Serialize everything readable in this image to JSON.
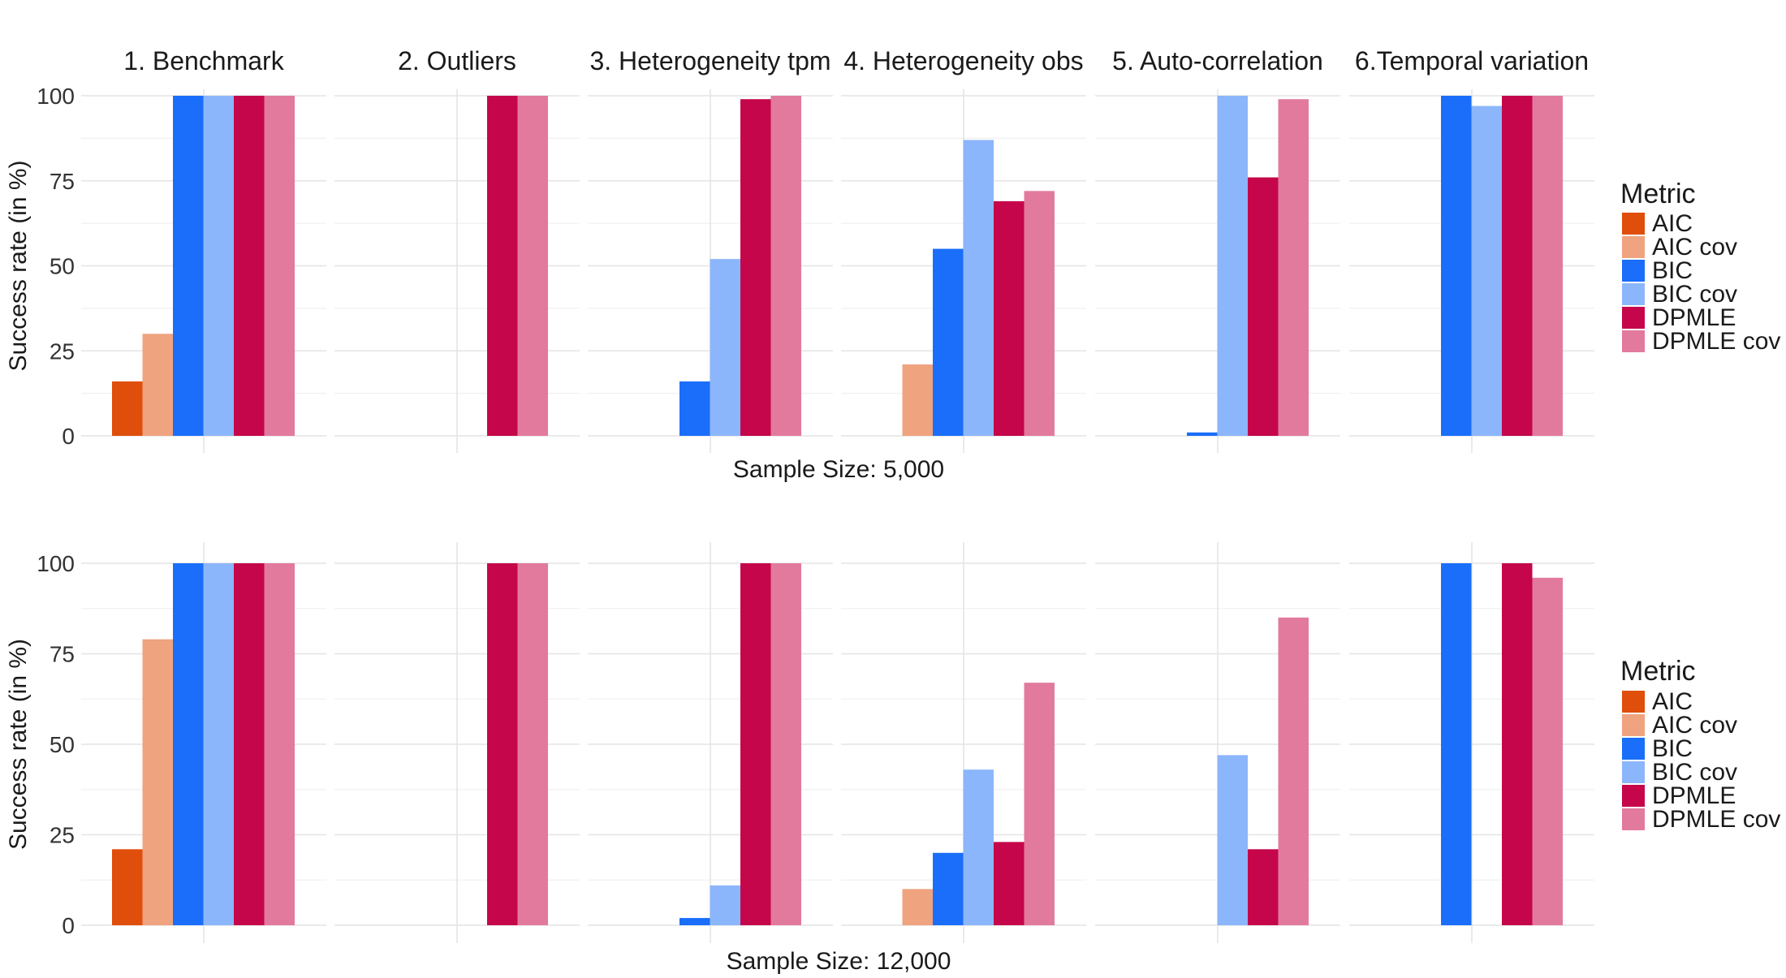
{
  "chart_data": [
    {
      "type": "bar",
      "panel_id": "top",
      "xlabel": "Sample Size: 5,000",
      "ylabel": "Success rate (in %)",
      "ylim": [
        0,
        100
      ],
      "yticks": [
        0,
        25,
        50,
        75,
        100
      ],
      "facets": [
        "1. Benchmark",
        "2. Outliers",
        "3. Heterogeneity tpm",
        "4. Heterogeneity obs",
        "5. Auto-correlation",
        "6.Temporal variation"
      ],
      "series": [
        {
          "name": "AIC",
          "color": "#E04E0B",
          "values": [
            16,
            0,
            0,
            0,
            0,
            0
          ]
        },
        {
          "name": "AIC cov",
          "color": "#EFA37F",
          "values": [
            30,
            0,
            0,
            21,
            0,
            0
          ]
        },
        {
          "name": "BIC",
          "color": "#1A6EFA",
          "values": [
            100,
            0,
            16,
            55,
            1,
            100
          ]
        },
        {
          "name": "BIC cov",
          "color": "#8CB6FB",
          "values": [
            100,
            0,
            52,
            87,
            100,
            97
          ]
        },
        {
          "name": "DPMLE",
          "color": "#C5064A",
          "values": [
            100,
            100,
            99,
            69,
            76,
            100
          ]
        },
        {
          "name": "DPMLE cov",
          "color": "#E27A9D",
          "values": [
            100,
            100,
            100,
            72,
            99,
            100
          ]
        }
      ],
      "legend": {
        "title": "Metric",
        "position": "right"
      }
    },
    {
      "type": "bar",
      "panel_id": "bottom",
      "xlabel": "Sample Size: 12,000",
      "ylabel": "Success rate (in %)",
      "ylim": [
        0,
        100
      ],
      "yticks": [
        0,
        25,
        50,
        75,
        100
      ],
      "facets": [
        "1. Benchmark",
        "2. Outliers",
        "3. Heterogeneity tpm",
        "4. Heterogeneity obs",
        "5. Auto-correlation",
        "6.Temporal variation"
      ],
      "series": [
        {
          "name": "AIC",
          "color": "#E04E0B",
          "values": [
            21,
            0,
            0,
            0,
            0,
            0
          ]
        },
        {
          "name": "AIC cov",
          "color": "#EFA37F",
          "values": [
            79,
            0,
            0,
            10,
            0,
            0
          ]
        },
        {
          "name": "BIC",
          "color": "#1A6EFA",
          "values": [
            100,
            0,
            2,
            20,
            0,
            100
          ]
        },
        {
          "name": "BIC cov",
          "color": "#8CB6FB",
          "values": [
            100,
            0,
            11,
            43,
            47,
            0
          ]
        },
        {
          "name": "DPMLE",
          "color": "#C5064A",
          "values": [
            100,
            100,
            100,
            23,
            21,
            100
          ]
        },
        {
          "name": "DPMLE cov",
          "color": "#E27A9D",
          "values": [
            100,
            100,
            100,
            67,
            85,
            96
          ]
        }
      ],
      "legend": {
        "title": "Metric",
        "position": "right"
      }
    }
  ]
}
